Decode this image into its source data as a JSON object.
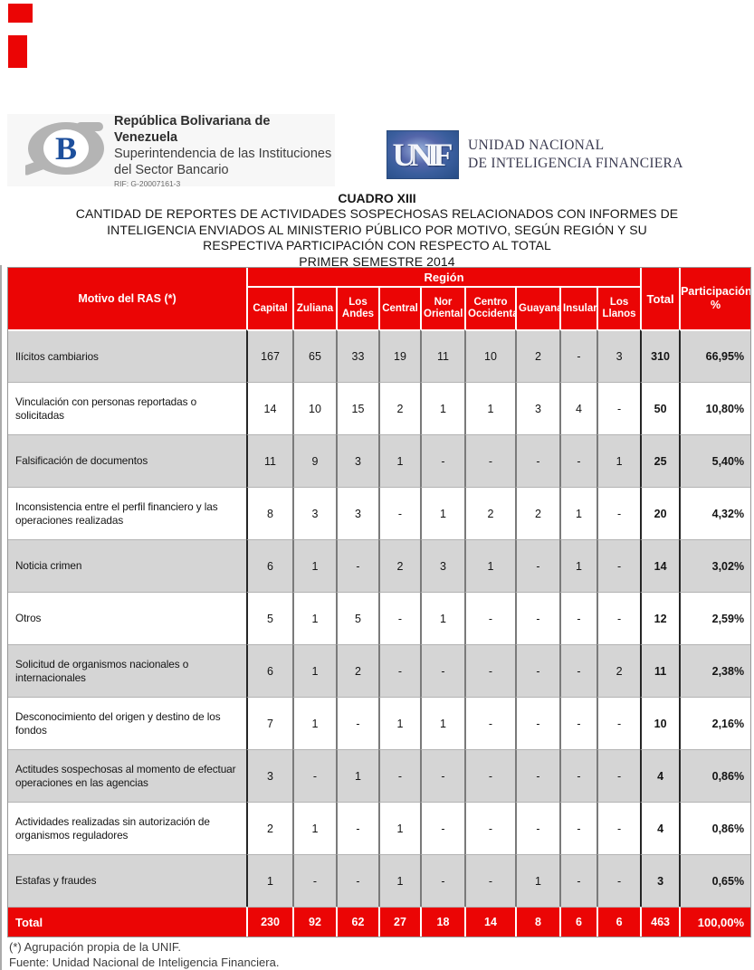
{
  "logos": {
    "sudeban": {
      "monogram": "B",
      "line1": "República Bolivariana de Venezuela",
      "line2": "Superintendencia de las Instituciones",
      "line3": "del Sector Bancario",
      "rif": "RIF: G-20007161-3"
    },
    "unif": {
      "acronym": "UNIF",
      "name": "UNIDAD NACIONAL\nDE INTELIGENCIA FINANCIERA"
    }
  },
  "title": {
    "cuadro": "CUADRO XIII",
    "body": "CANTIDAD DE REPORTES DE ACTIVIDADES SOSPECHOSAS RELACIONADOS CON INFORMES DE\nINTELIGENCIA ENVIADOS AL MINISTERIO PÚBLICO POR MOTIVO, SEGÚN REGIÓN Y SU\nRESPECTIVA PARTICIPACIÓN CON RESPECTO AL TOTAL\nPRIMER SEMESTRE 2014"
  },
  "table": {
    "col_motivo": "Motivo del RAS (*)",
    "region_header": "Región",
    "regions": [
      "Capital",
      "Zuliana",
      "Los Andes",
      "Central",
      "Nor Oriental",
      "Centro Occidental",
      "Guayana",
      "Insular",
      "Los Llanos"
    ],
    "col_total": "Total",
    "col_part": "Participación\n%",
    "rows": [
      {
        "motivo": "Ilícitos cambiarios",
        "values": [
          "167",
          "65",
          "33",
          "19",
          "11",
          "10",
          "2",
          "-",
          "3"
        ],
        "total": "310",
        "part": "66,95%"
      },
      {
        "motivo": "Vinculación con personas reportadas o solicitadas",
        "values": [
          "14",
          "10",
          "15",
          "2",
          "1",
          "1",
          "3",
          "4",
          "-"
        ],
        "total": "50",
        "part": "10,80%"
      },
      {
        "motivo": "Falsificación de documentos",
        "values": [
          "11",
          "9",
          "3",
          "1",
          "-",
          "-",
          "-",
          "-",
          "1"
        ],
        "total": "25",
        "part": "5,40%"
      },
      {
        "motivo": "Inconsistencia entre el perfil financiero y las operaciones realizadas",
        "values": [
          "8",
          "3",
          "3",
          "-",
          "1",
          "2",
          "2",
          "1",
          "-"
        ],
        "total": "20",
        "part": "4,32%"
      },
      {
        "motivo": "Noticia crimen",
        "values": [
          "6",
          "1",
          "-",
          "2",
          "3",
          "1",
          "-",
          "1",
          "-"
        ],
        "total": "14",
        "part": "3,02%"
      },
      {
        "motivo": "Otros",
        "values": [
          "5",
          "1",
          "5",
          "-",
          "1",
          "-",
          "-",
          "-",
          "-"
        ],
        "total": "12",
        "part": "2,59%"
      },
      {
        "motivo": "Solicitud de organismos nacionales o internacionales",
        "values": [
          "6",
          "1",
          "2",
          "-",
          "-",
          "-",
          "-",
          "-",
          "2"
        ],
        "total": "11",
        "part": "2,38%"
      },
      {
        "motivo": "Desconocimiento del origen y destino de los fondos",
        "values": [
          "7",
          "1",
          "-",
          "1",
          "1",
          "-",
          "-",
          "-",
          "-"
        ],
        "total": "10",
        "part": "2,16%"
      },
      {
        "motivo": "Actitudes sospechosas al momento de efectuar operaciones en las agencias",
        "values": [
          "3",
          "-",
          "1",
          "-",
          "-",
          "-",
          "-",
          "-",
          "-"
        ],
        "total": "4",
        "part": "0,86%"
      },
      {
        "motivo": "Actividades realizadas sin autorización de organismos reguladores",
        "values": [
          "2",
          "1",
          "-",
          "1",
          "-",
          "-",
          "-",
          "-",
          "-"
        ],
        "total": "4",
        "part": "0,86%"
      },
      {
        "motivo": "Estafas y fraudes",
        "values": [
          "1",
          "-",
          "-",
          "1",
          "-",
          "-",
          "1",
          "-",
          "-"
        ],
        "total": "3",
        "part": "0,65%"
      }
    ],
    "total_row": {
      "label": "Total",
      "values": [
        "230",
        "92",
        "62",
        "27",
        "18",
        "14",
        "8",
        "6",
        "6"
      ],
      "total": "463",
      "part": "100,00%"
    }
  },
  "footer": {
    "note": "(*) Agrupación propia de la UNIF.",
    "source": "Fuente: Unidad Nacional de Inteligencia Financiera."
  },
  "colors": {
    "accent_red": "#eb0505",
    "row_gray": "#d5d5d5"
  }
}
